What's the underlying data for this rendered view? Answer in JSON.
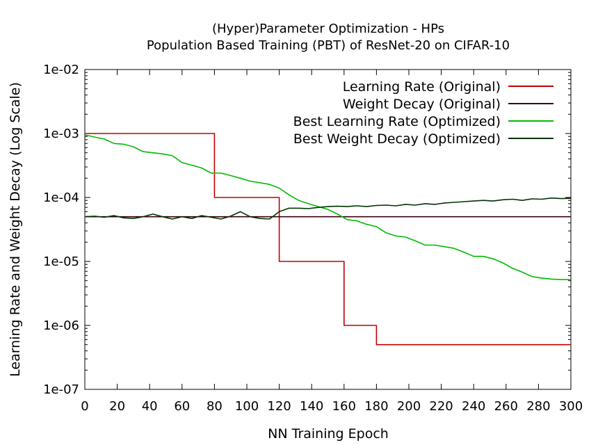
{
  "chart_data": {
    "type": "line",
    "title": [
      "(Hyper)Parameter Optimization - HPs",
      "Population Based Training (PBT) of ResNet-20 on CIFAR-10"
    ],
    "xlabel": "NN Training Epoch",
    "ylabel": "Learning Rate and Weight Decay (Log Scale)",
    "xlim": [
      0,
      300
    ],
    "ylim": [
      1e-07,
      0.01
    ],
    "yscale": "log",
    "x_ticks": [
      0,
      20,
      40,
      60,
      80,
      100,
      120,
      140,
      160,
      180,
      200,
      220,
      240,
      260,
      280,
      300
    ],
    "y_ticks": [
      {
        "value": 1e-07,
        "label": "1e-07"
      },
      {
        "value": 1e-06,
        "label": "1e-06"
      },
      {
        "value": 1e-05,
        "label": "1e-05"
      },
      {
        "value": 0.0001,
        "label": "1e-04"
      },
      {
        "value": 0.001,
        "label": "1e-03"
      },
      {
        "value": 0.01,
        "label": "1e-02"
      }
    ],
    "legend_position": "top-right",
    "series": [
      {
        "name": "Learning Rate (Original)",
        "color": "#c00000",
        "points": [
          [
            0,
            0.001
          ],
          [
            80,
            0.001
          ],
          [
            80,
            0.0001
          ],
          [
            120,
            0.0001
          ],
          [
            120,
            1e-05
          ],
          [
            160,
            1e-05
          ],
          [
            160,
            1e-06
          ],
          [
            180,
            1e-06
          ],
          [
            180,
            5e-07
          ],
          [
            300,
            5e-07
          ]
        ]
      },
      {
        "name": "Weight Decay (Original)",
        "color": "#3a0010",
        "points": [
          [
            0,
            5e-05
          ],
          [
            300,
            5e-05
          ]
        ]
      },
      {
        "name": "Best Learning Rate (Optimized)",
        "color": "#00bb00",
        "points": [
          [
            0,
            0.00095
          ],
          [
            6,
            0.00088
          ],
          [
            12,
            0.00082
          ],
          [
            18,
            0.0007
          ],
          [
            24,
            0.00068
          ],
          [
            30,
            0.00062
          ],
          [
            36,
            0.00052
          ],
          [
            42,
            0.0005
          ],
          [
            48,
            0.00048
          ],
          [
            54,
            0.00045
          ],
          [
            60,
            0.00035
          ],
          [
            66,
            0.00032
          ],
          [
            72,
            0.00029
          ],
          [
            78,
            0.00024
          ],
          [
            84,
            0.00024
          ],
          [
            90,
            0.00022
          ],
          [
            96,
            0.0002
          ],
          [
            102,
            0.00018
          ],
          [
            108,
            0.00017
          ],
          [
            114,
            0.00016
          ],
          [
            120,
            0.00014
          ],
          [
            126,
            0.00011
          ],
          [
            132,
            9e-05
          ],
          [
            138,
            8e-05
          ],
          [
            144,
            7.2e-05
          ],
          [
            150,
            6.5e-05
          ],
          [
            156,
            5.5e-05
          ],
          [
            162,
            4.5e-05
          ],
          [
            168,
            4.3e-05
          ],
          [
            174,
            3.8e-05
          ],
          [
            180,
            3.5e-05
          ],
          [
            186,
            2.8e-05
          ],
          [
            192,
            2.5e-05
          ],
          [
            198,
            2.4e-05
          ],
          [
            204,
            2.1e-05
          ],
          [
            210,
            1.8e-05
          ],
          [
            216,
            1.8e-05
          ],
          [
            222,
            1.7e-05
          ],
          [
            228,
            1.6e-05
          ],
          [
            234,
            1.4e-05
          ],
          [
            240,
            1.2e-05
          ],
          [
            246,
            1.2e-05
          ],
          [
            252,
            1.1e-05
          ],
          [
            258,
            9.5e-06
          ],
          [
            264,
            7.8e-06
          ],
          [
            270,
            6.8e-06
          ],
          [
            276,
            5.8e-06
          ],
          [
            282,
            5.5e-06
          ],
          [
            288,
            5.3e-06
          ],
          [
            294,
            5.2e-06
          ],
          [
            300,
            5.2e-06
          ]
        ]
      },
      {
        "name": "Best Weight Decay (Optimized)",
        "color": "#003300",
        "points": [
          [
            0,
            5e-05
          ],
          [
            6,
            5.1e-05
          ],
          [
            12,
            4.9e-05
          ],
          [
            18,
            5.2e-05
          ],
          [
            24,
            4.8e-05
          ],
          [
            30,
            4.7e-05
          ],
          [
            36,
            5e-05
          ],
          [
            42,
            5.5e-05
          ],
          [
            48,
            5e-05
          ],
          [
            54,
            4.6e-05
          ],
          [
            60,
            5e-05
          ],
          [
            66,
            4.7e-05
          ],
          [
            72,
            5.2e-05
          ],
          [
            78,
            4.9e-05
          ],
          [
            84,
            4.6e-05
          ],
          [
            90,
            5.1e-05
          ],
          [
            96,
            6e-05
          ],
          [
            102,
            5e-05
          ],
          [
            108,
            4.7e-05
          ],
          [
            114,
            4.6e-05
          ],
          [
            120,
            6e-05
          ],
          [
            126,
            6.8e-05
          ],
          [
            132,
            6.8e-05
          ],
          [
            138,
            6.7e-05
          ],
          [
            144,
            7e-05
          ],
          [
            150,
            7.2e-05
          ],
          [
            156,
            7.3e-05
          ],
          [
            162,
            7.2e-05
          ],
          [
            168,
            7.4e-05
          ],
          [
            174,
            7.2e-05
          ],
          [
            180,
            7.5e-05
          ],
          [
            186,
            7.6e-05
          ],
          [
            192,
            7.4e-05
          ],
          [
            198,
            7.8e-05
          ],
          [
            204,
            7.6e-05
          ],
          [
            210,
            8e-05
          ],
          [
            216,
            7.8e-05
          ],
          [
            222,
            8.2e-05
          ],
          [
            228,
            8.4e-05
          ],
          [
            234,
            8.6e-05
          ],
          [
            240,
            8.8e-05
          ],
          [
            246,
            9e-05
          ],
          [
            252,
            8.8e-05
          ],
          [
            258,
            9.2e-05
          ],
          [
            264,
            9.4e-05
          ],
          [
            270,
            9e-05
          ],
          [
            276,
            9.5e-05
          ],
          [
            282,
            9.4e-05
          ],
          [
            288,
            9.8e-05
          ],
          [
            294,
            9.6e-05
          ],
          [
            300,
            9.7e-05
          ]
        ]
      }
    ]
  }
}
